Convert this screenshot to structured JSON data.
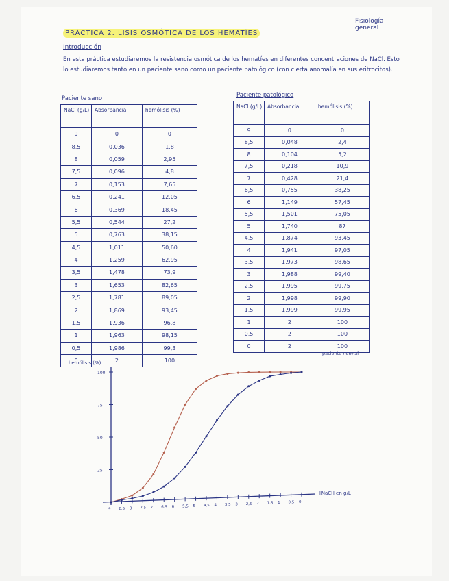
{
  "header": {
    "title": "PRÁCTICA 2. LISIS OSMÓTICA DE LOS HEMATÍES",
    "subject": "Fisiología general"
  },
  "intro": {
    "heading": "Introducción",
    "text": "En esta práctica estudiaremos la resistencia osmótica de los hematíes en diferentes concentraciones de NaCl. Esto lo estudiaremos tanto en un paciente sano como un paciente patológico (con cierta anomalía en sus eritrocitos)."
  },
  "tables": [
    {
      "caption": "Paciente sano",
      "headers": [
        "NaCl (g/L)",
        "Absorbancia",
        "hemólisis (%)"
      ],
      "rows": [
        [
          "9",
          "0",
          "0"
        ],
        [
          "8,5",
          "0,036",
          "1,8"
        ],
        [
          "8",
          "0,059",
          "2,95"
        ],
        [
          "7,5",
          "0,096",
          "4,8"
        ],
        [
          "7",
          "0,153",
          "7,65"
        ],
        [
          "6,5",
          "0,241",
          "12,05"
        ],
        [
          "6",
          "0,369",
          "18,45"
        ],
        [
          "5,5",
          "0,544",
          "27,2"
        ],
        [
          "5",
          "0,763",
          "38,15"
        ],
        [
          "4,5",
          "1,011",
          "50,60"
        ],
        [
          "4",
          "1,259",
          "62,95"
        ],
        [
          "3,5",
          "1,478",
          "73,9"
        ],
        [
          "3",
          "1,653",
          "82,65"
        ],
        [
          "2,5",
          "1,781",
          "89,05"
        ],
        [
          "2",
          "1,869",
          "93,45"
        ],
        [
          "1,5",
          "1,936",
          "96,8"
        ],
        [
          "1",
          "1,963",
          "98,15"
        ],
        [
          "0,5",
          "1,986",
          "99,3"
        ],
        [
          "0",
          "2",
          "100"
        ]
      ]
    },
    {
      "caption": "Paciente patológico",
      "headers": [
        "NaCl (g/L)",
        "Absorbancia",
        "hemólisis (%)"
      ],
      "rows": [
        [
          "9",
          "0",
          "0"
        ],
        [
          "8,5",
          "0,048",
          "2,4"
        ],
        [
          "8",
          "0,104",
          "5,2"
        ],
        [
          "7,5",
          "0,218",
          "10,9"
        ],
        [
          "7",
          "0,428",
          "21,4"
        ],
        [
          "6,5",
          "0,755",
          "38,25"
        ],
        [
          "6",
          "1,149",
          "57,45"
        ],
        [
          "5,5",
          "1,501",
          "75,05"
        ],
        [
          "5",
          "1,740",
          "87"
        ],
        [
          "4,5",
          "1,874",
          "93,45"
        ],
        [
          "4",
          "1,941",
          "97,05"
        ],
        [
          "3,5",
          "1,973",
          "98,65"
        ],
        [
          "3",
          "1,988",
          "99,40"
        ],
        [
          "2,5",
          "1,995",
          "99,75"
        ],
        [
          "2",
          "1,998",
          "99,90"
        ],
        [
          "1,5",
          "1,999",
          "99,95"
        ],
        [
          "1",
          "2",
          "100"
        ],
        [
          "0,5",
          "2",
          "100"
        ],
        [
          "0",
          "2",
          "100"
        ]
      ]
    }
  ],
  "chart_data": {
    "type": "line",
    "ylabel": "hemólisis (%)",
    "xlabel": "[NaCl] en g/L",
    "x": [
      9,
      8.5,
      8,
      7.5,
      7,
      6.5,
      6,
      5.5,
      5,
      4.5,
      4,
      3.5,
      3,
      2.5,
      2,
      1.5,
      1,
      0.5,
      0
    ],
    "x_tick_labels": [
      "9",
      "8,5",
      "8",
      "7,5",
      "7",
      "6,5",
      "6",
      "5,5",
      "5",
      "4,5",
      "4",
      "3,5",
      "3",
      "2,5",
      "2",
      "1,5",
      "1",
      "0,5",
      "0"
    ],
    "y_ticks": [
      25,
      50,
      75,
      100
    ],
    "ylim": [
      0,
      105
    ],
    "x_reversed": true,
    "annotation": "paciente normal",
    "series": [
      {
        "color": "#b5604e",
        "values": [
          0,
          2.4,
          5.2,
          10.9,
          21.4,
          38.25,
          57.45,
          75.05,
          87,
          93.45,
          97.05,
          98.65,
          99.4,
          99.75,
          99.9,
          99.95,
          100,
          100,
          100
        ]
      },
      {
        "color": "#2b3585",
        "values": [
          0,
          1.8,
          2.95,
          4.8,
          7.65,
          12.05,
          18.45,
          27.2,
          38.15,
          50.6,
          62.95,
          73.9,
          82.65,
          89.05,
          93.45,
          96.8,
          98.15,
          99.3,
          100
        ]
      }
    ]
  }
}
